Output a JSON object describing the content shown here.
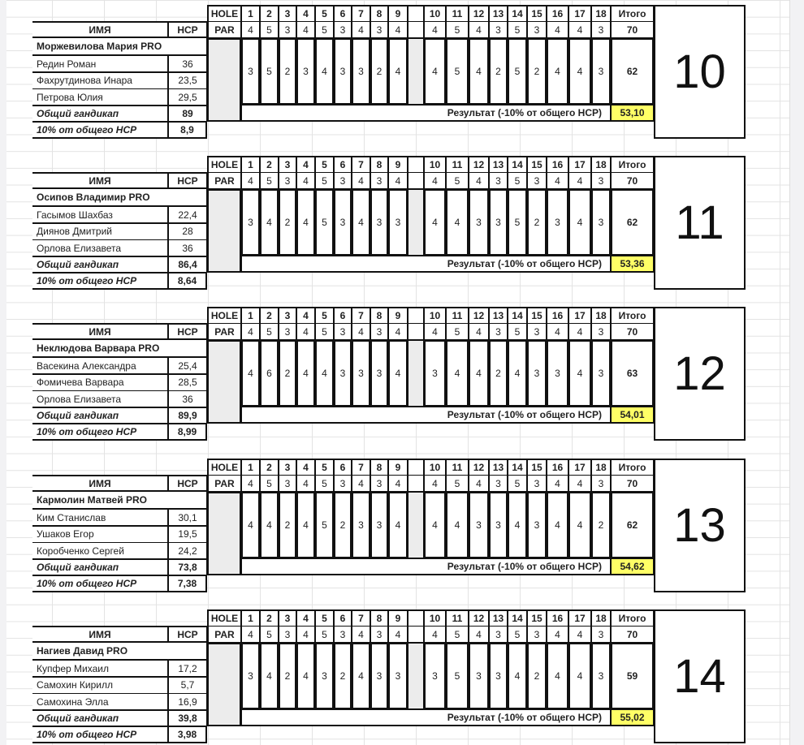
{
  "headers": {
    "hole": "HOLE",
    "par": "PAR",
    "name": "ИМЯ",
    "hcp": "HCP",
    "total": "Итого",
    "total_hcp_label": "Общий гандикап",
    "ten_pct_label": "10% от общего HCP",
    "result_label": "Результат (-10% от общего HCP)"
  },
  "holes": [
    "1",
    "2",
    "3",
    "4",
    "5",
    "6",
    "7",
    "8",
    "9",
    "10",
    "11",
    "12",
    "13",
    "14",
    "15",
    "16",
    "17",
    "18"
  ],
  "par": [
    "4",
    "5",
    "3",
    "4",
    "5",
    "3",
    "4",
    "3",
    "4",
    "4",
    "5",
    "4",
    "3",
    "5",
    "3",
    "4",
    "4",
    "3"
  ],
  "par_total": "70",
  "colors": {
    "highlight": "#ffff66",
    "grid": "#e3e3e3",
    "border": "#111111"
  },
  "teams": [
    {
      "number": "10",
      "pro": "Моржевилова Мария PRO",
      "players": [
        {
          "name": "Редин Роман",
          "hcp": "36"
        },
        {
          "name": "Фахрутдинова Инара",
          "hcp": "23,5"
        },
        {
          "name": "Петрова Юлия",
          "hcp": "29,5"
        }
      ],
      "total_hcp": "89",
      "ten_pct": "8,9",
      "scores": [
        "3",
        "5",
        "2",
        "3",
        "4",
        "3",
        "3",
        "2",
        "4",
        "4",
        "5",
        "4",
        "2",
        "5",
        "2",
        "4",
        "4",
        "3"
      ],
      "total": "62",
      "result": "53,10"
    },
    {
      "number": "11",
      "pro": "Осипов Владимир PRO",
      "players": [
        {
          "name": "Гасымов Шахбаз",
          "hcp": "22,4"
        },
        {
          "name": "Диянов Дмитрий",
          "hcp": "28"
        },
        {
          "name": "Орлова Елизавета",
          "hcp": "36"
        }
      ],
      "total_hcp": "86,4",
      "ten_pct": "8,64",
      "scores": [
        "3",
        "4",
        "2",
        "4",
        "5",
        "3",
        "4",
        "3",
        "3",
        "4",
        "4",
        "3",
        "3",
        "5",
        "2",
        "3",
        "4",
        "3"
      ],
      "total": "62",
      "result": "53,36"
    },
    {
      "number": "12",
      "pro": "Неклюдова Варвара PRO",
      "players": [
        {
          "name": "Васекина Александра",
          "hcp": "25,4"
        },
        {
          "name": "Фомичева Варвара",
          "hcp": "28,5"
        },
        {
          "name": "Орлова Елизавета",
          "hcp": "36"
        }
      ],
      "total_hcp": "89,9",
      "ten_pct": "8,99",
      "scores": [
        "4",
        "6",
        "2",
        "4",
        "4",
        "3",
        "3",
        "3",
        "4",
        "3",
        "4",
        "4",
        "2",
        "4",
        "3",
        "3",
        "4",
        "3"
      ],
      "total": "63",
      "result": "54,01"
    },
    {
      "number": "13",
      "pro": "Кармолин Матвей PRO",
      "players": [
        {
          "name": "Ким Станислав",
          "hcp": "30,1"
        },
        {
          "name": "Ушаков Егор",
          "hcp": "19,5"
        },
        {
          "name": "Коробченко Сергей",
          "hcp": "24,2"
        }
      ],
      "total_hcp": "73,8",
      "ten_pct": "7,38",
      "scores": [
        "4",
        "4",
        "2",
        "4",
        "5",
        "2",
        "3",
        "3",
        "4",
        "4",
        "4",
        "3",
        "3",
        "4",
        "3",
        "4",
        "4",
        "2"
      ],
      "total": "62",
      "result": "54,62"
    },
    {
      "number": "14",
      "pro": "Нагиев Давид PRO",
      "players": [
        {
          "name": "Купфер Михаил",
          "hcp": "17,2"
        },
        {
          "name": "Самохин Кирилл",
          "hcp": "5,7"
        },
        {
          "name": "Самохина Элла",
          "hcp": "16,9"
        }
      ],
      "total_hcp": "39,8",
      "ten_pct": "3,98",
      "scores": [
        "3",
        "4",
        "2",
        "4",
        "3",
        "2",
        "4",
        "3",
        "3",
        "3",
        "5",
        "3",
        "3",
        "4",
        "2",
        "4",
        "4",
        "3"
      ],
      "total": "59",
      "result": "55,02"
    }
  ]
}
